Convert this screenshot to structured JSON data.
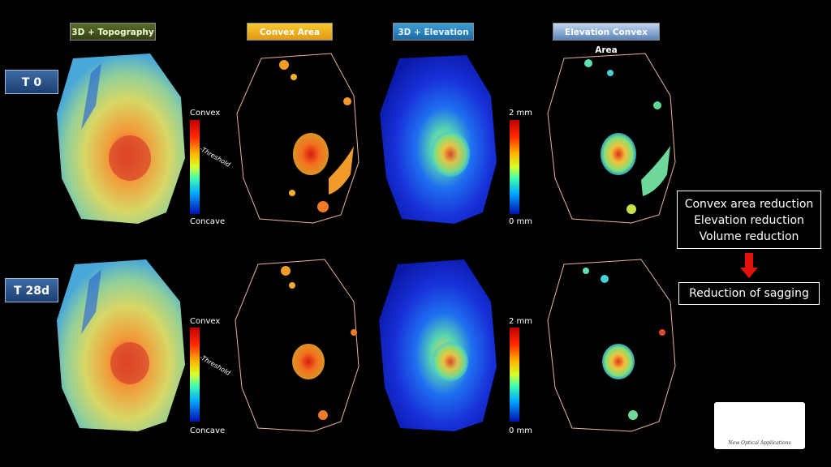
{
  "headers": [
    "3D + Topography",
    "Convex Area",
    "3D + Elevation",
    "Elevation Convex Area"
  ],
  "rows": [
    {
      "label": "T 0"
    },
    {
      "label": "T 28d"
    }
  ],
  "topography_scale": {
    "top": "Convex",
    "middle": "Threshold",
    "bottom": "Concave"
  },
  "elevation_scale": {
    "top": "2 mm",
    "bottom": "0 mm"
  },
  "results": {
    "lines": [
      "Convex area reduction",
      "Elevation reduction",
      "Volume reduction"
    ],
    "conclusion": "Reduction of sagging"
  },
  "colors": {
    "background": "#000000",
    "arrow": "#e3120b",
    "outline": "#e8b59a"
  }
}
